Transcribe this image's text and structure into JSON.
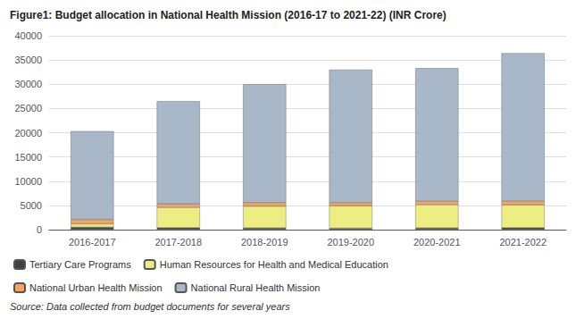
{
  "chart_data": {
    "type": "bar",
    "title": "Figure1: Budget allocation in National Health Mission (2016-17 to 2021-22) (INR Crore)",
    "annotations": [
      "Source: Data collected from budget documents for several years"
    ],
    "categories": [
      "2016-2017",
      "2017-2018",
      "2018-2019",
      "2019-2020",
      "2020-2021",
      "2021-2022"
    ],
    "series": [
      {
        "name": "Tertiary Care Programs",
        "color": "#404040",
        "values": [
          500,
          400,
          350,
          300,
          350,
          400
        ]
      },
      {
        "name": "Human Resources for Health and Medical Education",
        "color": "#eeed82",
        "values": [
          700,
          4200,
          4500,
          4600,
          4800,
          4700
        ]
      },
      {
        "name": "National Urban Health Mission",
        "color": "#f4a460",
        "values": [
          900,
          700,
          750,
          700,
          750,
          800
        ]
      },
      {
        "name": "National Rural Health Mission",
        "color": "#a9b8c8",
        "values": [
          18200,
          21200,
          24400,
          27400,
          27400,
          30500
        ]
      }
    ],
    "stacked": true,
    "ylim": [
      0,
      40000
    ],
    "yticks": [
      0,
      5000,
      10000,
      15000,
      20000,
      25000,
      30000,
      35000,
      40000
    ],
    "grid": true,
    "legend": "bottom"
  }
}
